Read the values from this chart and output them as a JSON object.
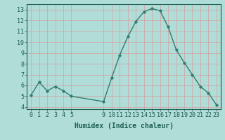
{
  "x": [
    0,
    1,
    2,
    3,
    4,
    5,
    9,
    10,
    11,
    12,
    13,
    14,
    15,
    16,
    17,
    18,
    19,
    20,
    21,
    22,
    23
  ],
  "y": [
    5.1,
    6.3,
    5.5,
    5.9,
    5.5,
    5.0,
    4.5,
    6.7,
    8.8,
    10.5,
    11.9,
    12.8,
    13.1,
    12.9,
    11.4,
    9.3,
    8.1,
    7.0,
    5.9,
    5.3,
    4.2
  ],
  "line_color": "#2e7d6e",
  "marker_color": "#2e7d6e",
  "bg_color": "#b0ddd8",
  "grid_color": "#c8e8e4",
  "xlabel": "Humidex (Indice chaleur)",
  "xlim": [
    -0.5,
    23.5
  ],
  "ylim": [
    3.8,
    13.5
  ],
  "xticks": [
    0,
    1,
    2,
    3,
    4,
    5,
    9,
    10,
    11,
    12,
    13,
    14,
    15,
    16,
    17,
    18,
    19,
    20,
    21,
    22,
    23
  ],
  "yticks": [
    4,
    5,
    6,
    7,
    8,
    9,
    10,
    11,
    12,
    13
  ],
  "xlabel_fontsize": 7,
  "tick_fontsize": 6,
  "marker_size": 2.5,
  "line_width": 1.0,
  "ax_color": "#1a5c50"
}
